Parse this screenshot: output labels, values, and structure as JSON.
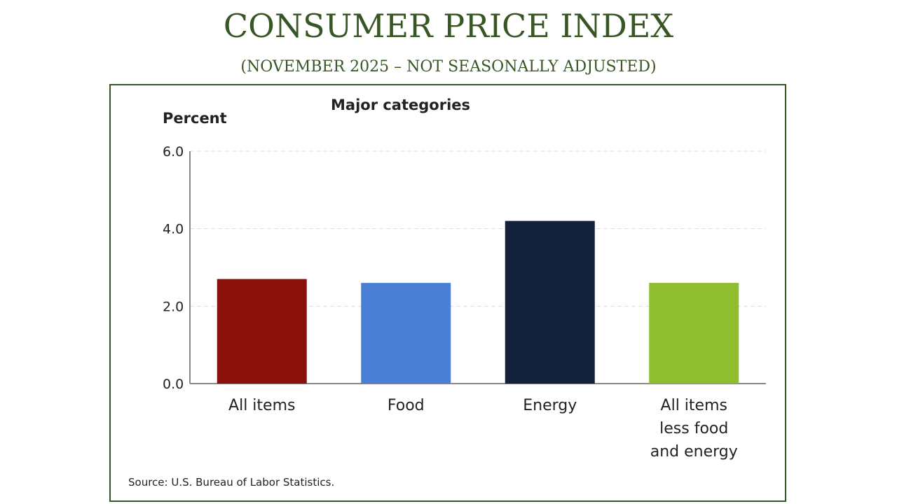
{
  "header": {
    "title": "CONSUMER PRICE INDEX",
    "subtitle": "(NOVEMBER 2025 – NOT SEASONALLY ADJUSTED)"
  },
  "chart_data": {
    "type": "bar",
    "title": "Major categories",
    "ylabel": "Percent",
    "xlabel": "",
    "categories": [
      "All items",
      "Food",
      "Energy",
      "All items less food and energy"
    ],
    "category_lines": [
      [
        "All items"
      ],
      [
        "Food"
      ],
      [
        "Energy"
      ],
      [
        "All items",
        "less food",
        "and energy"
      ]
    ],
    "values": [
      2.7,
      2.6,
      4.2,
      2.6
    ],
    "colors": [
      "#8b120c",
      "#4a7fd6",
      "#13213a",
      "#8fbd2f"
    ],
    "ylim": [
      0,
      6
    ],
    "yticks": [
      "0.0",
      "2.0",
      "4.0",
      "6.0"
    ],
    "grid": true,
    "source": "Source: U.S. Bureau of Labor Statistics."
  },
  "colors": {
    "title": "#375623",
    "frame": "#375623"
  }
}
